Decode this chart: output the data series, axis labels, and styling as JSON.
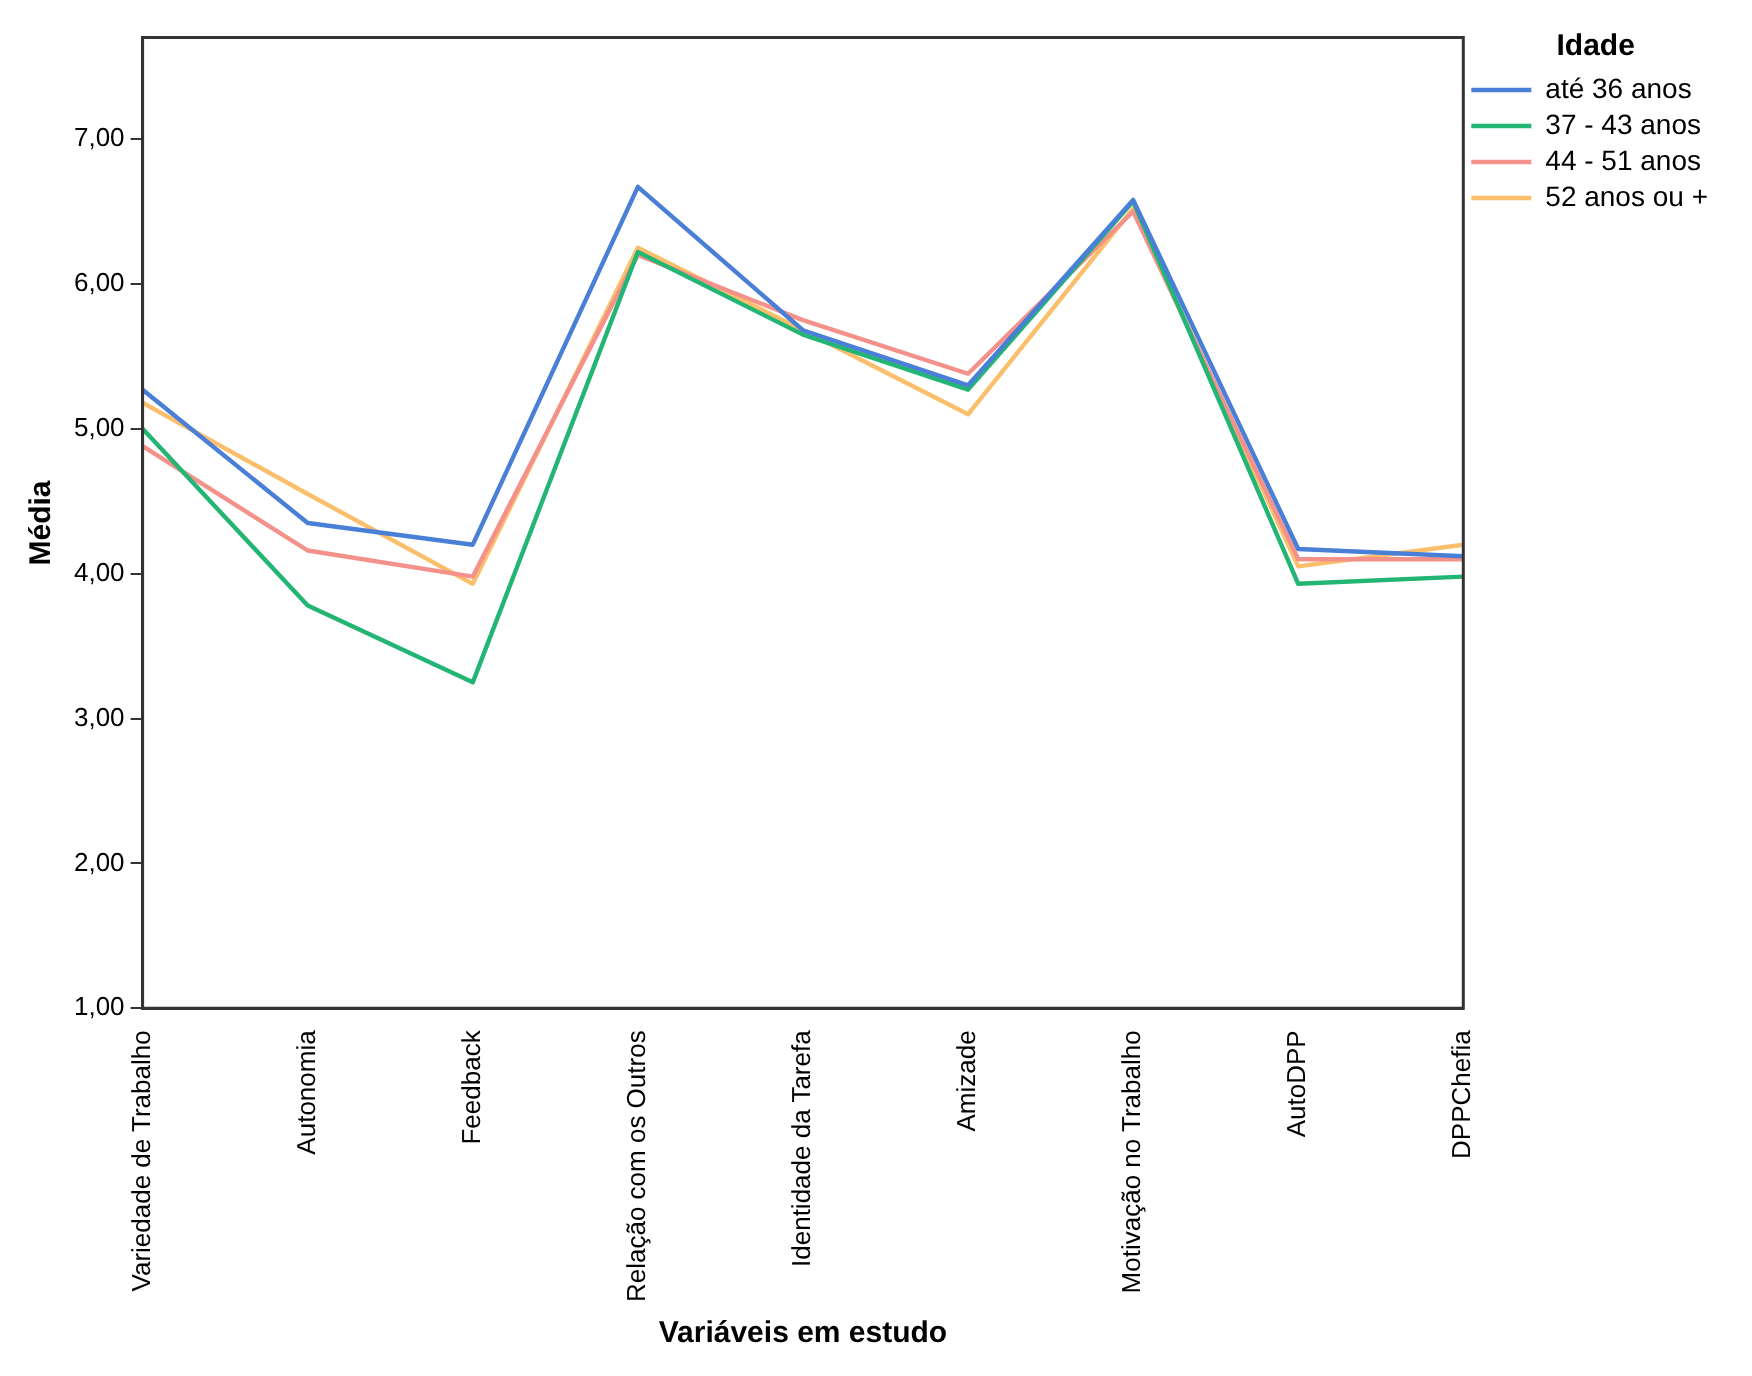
{
  "chart_data": {
    "type": "line",
    "xlabel": "Variáveis em estudo",
    "ylabel": "Média",
    "legend_title": "Idade",
    "categories": [
      "Variedade de Trabalho",
      "Autonomia",
      "Feedback",
      "Relação com os Outros",
      "Identidade da Tarefa",
      "Amizade",
      "Motivação no Trabalho",
      "AutoDPP",
      "DPPChefia"
    ],
    "series": [
      {
        "name": "até 36 anos",
        "color": "#4a7fd8",
        "values": [
          5.27,
          4.35,
          4.2,
          6.67,
          5.68,
          5.3,
          6.58,
          4.17,
          4.12
        ]
      },
      {
        "name": "37 - 43 anos",
        "color": "#22b573",
        "values": [
          5.0,
          3.78,
          3.25,
          6.22,
          5.65,
          5.27,
          6.57,
          3.93,
          3.98
        ]
      },
      {
        "name": "44 - 51 anos",
        "color": "#f4918a",
        "values": [
          4.88,
          4.16,
          3.98,
          6.2,
          5.75,
          5.38,
          6.5,
          4.1,
          4.1
        ]
      },
      {
        "name": "52 anos ou +",
        "color": "#fbbf6c",
        "values": [
          5.18,
          4.55,
          3.93,
          6.25,
          5.68,
          5.1,
          6.52,
          4.05,
          4.2
        ]
      }
    ],
    "ylim": [
      1,
      7.7
    ],
    "yticks": [
      {
        "value": 1,
        "label": "1,00"
      },
      {
        "value": 2,
        "label": "2,00"
      },
      {
        "value": 3,
        "label": "3,00"
      },
      {
        "value": 4,
        "label": "4,00"
      },
      {
        "value": 5,
        "label": "5,00"
      },
      {
        "value": 6,
        "label": "6,00"
      },
      {
        "value": 7,
        "label": "7,00"
      }
    ],
    "grid": false,
    "legend": "top right",
    "marker": "none",
    "line_style": "solid"
  }
}
